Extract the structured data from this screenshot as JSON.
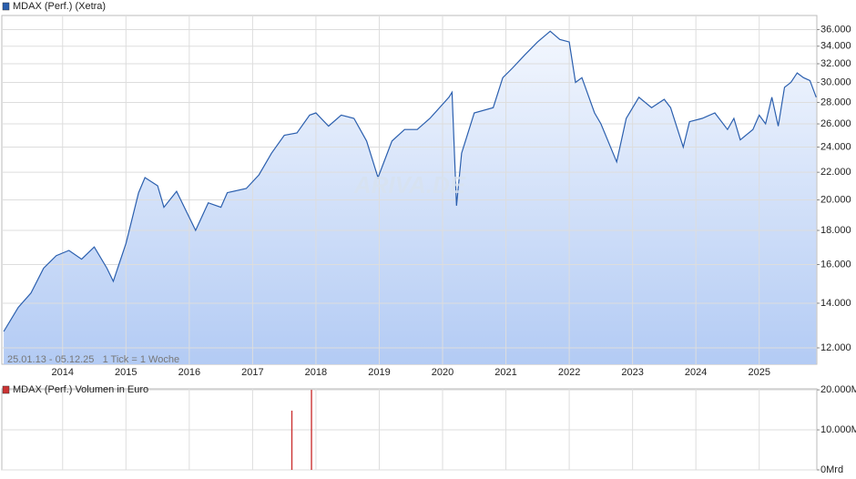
{
  "chart_data": [
    {
      "type": "line",
      "ylog": true,
      "grid": true,
      "annotation": "25.01.13 - 05.12.25   1 Tick = 1 Woche",
      "watermark": "ARIVA.DE",
      "xlim": [
        2013.04,
        2025.91
      ],
      "xticks": [
        2014,
        2015,
        2016,
        2017,
        2018,
        2019,
        2020,
        2021,
        2022,
        2023,
        2024,
        2025
      ],
      "ylim": [
        11340,
        37800
      ],
      "yticks": [
        {
          "value": 12000,
          "label": "12.000"
        },
        {
          "value": 14000,
          "label": "14.000"
        },
        {
          "value": 16000,
          "label": "16.000"
        },
        {
          "value": 18000,
          "label": "18.000"
        },
        {
          "value": 20000,
          "label": "20.000"
        },
        {
          "value": 22000,
          "label": "22.000"
        },
        {
          "value": 24000,
          "label": "24.000"
        },
        {
          "value": 26000,
          "label": "26.000"
        },
        {
          "value": 28000,
          "label": "28.000"
        },
        {
          "value": 30000,
          "label": "30.000"
        },
        {
          "value": 32000,
          "label": "32.000"
        },
        {
          "value": 34000,
          "label": "34.000"
        },
        {
          "value": 36000,
          "label": "36.000"
        }
      ],
      "x": [
        2013.07,
        2013.3,
        2013.5,
        2013.7,
        2013.9,
        2014.1,
        2014.3,
        2014.5,
        2014.7,
        2014.8,
        2015.0,
        2015.2,
        2015.3,
        2015.5,
        2015.6,
        2015.8,
        2016.1,
        2016.3,
        2016.5,
        2016.6,
        2016.9,
        2017.1,
        2017.3,
        2017.5,
        2017.7,
        2017.9,
        2018.0,
        2018.2,
        2018.4,
        2018.6,
        2018.8,
        2018.98,
        2019.2,
        2019.4,
        2019.6,
        2019.8,
        2020.1,
        2020.15,
        2020.22,
        2020.3,
        2020.5,
        2020.8,
        2020.95,
        2021.1,
        2021.3,
        2021.5,
        2021.7,
        2021.85,
        2022.0,
        2022.1,
        2022.2,
        2022.4,
        2022.5,
        2022.75,
        2022.9,
        2023.1,
        2023.3,
        2023.5,
        2023.6,
        2023.8,
        2023.9,
        2024.1,
        2024.3,
        2024.5,
        2024.6,
        2024.7,
        2024.9,
        2025.0,
        2025.1,
        2025.2,
        2025.3,
        2025.4,
        2025.5,
        2025.6,
        2025.7,
        2025.8,
        2025.9
      ],
      "series": [
        {
          "name": "MDAX (Perf.) (Xetra)",
          "color": "#2b5fae",
          "values": [
            12700,
            13800,
            14500,
            15800,
            16500,
            16800,
            16300,
            17000,
            15800,
            15100,
            17200,
            20500,
            21600,
            21000,
            19500,
            20600,
            18000,
            19800,
            19500,
            20500,
            20800,
            21800,
            23500,
            25000,
            25200,
            26800,
            27000,
            25800,
            26800,
            26500,
            24500,
            21600,
            24500,
            25500,
            25500,
            26500,
            28500,
            29000,
            19600,
            23500,
            27000,
            27500,
            30500,
            31500,
            33000,
            34500,
            35800,
            34800,
            34500,
            30000,
            30500,
            27000,
            26000,
            22800,
            26500,
            28500,
            27500,
            28300,
            27500,
            24000,
            26200,
            26500,
            27000,
            25500,
            26500,
            24600,
            25500,
            26800,
            26000,
            28500,
            25800,
            29500,
            30000,
            31000,
            30500,
            30200,
            28500
          ]
        }
      ]
    },
    {
      "type": "bar",
      "grid": true,
      "xlim": [
        2013.04,
        2025.91
      ],
      "xticks": [
        2014,
        2015,
        2016,
        2017,
        2018,
        2019,
        2020,
        2021,
        2022,
        2023,
        2024,
        2025
      ],
      "ylim": [
        0,
        20250
      ],
      "yticks": [
        {
          "value": 0,
          "label": "0Mrd"
        },
        {
          "value": 10000,
          "label": "10.000M"
        },
        {
          "value": 20000,
          "label": "20.000M"
        }
      ],
      "x": [
        2017.62,
        2017.93
      ],
      "series": [
        {
          "name": "MDAX (Perf.) Volumen in Euro",
          "color": "#cc3333",
          "values": [
            14800,
            20000
          ]
        }
      ]
    }
  ]
}
